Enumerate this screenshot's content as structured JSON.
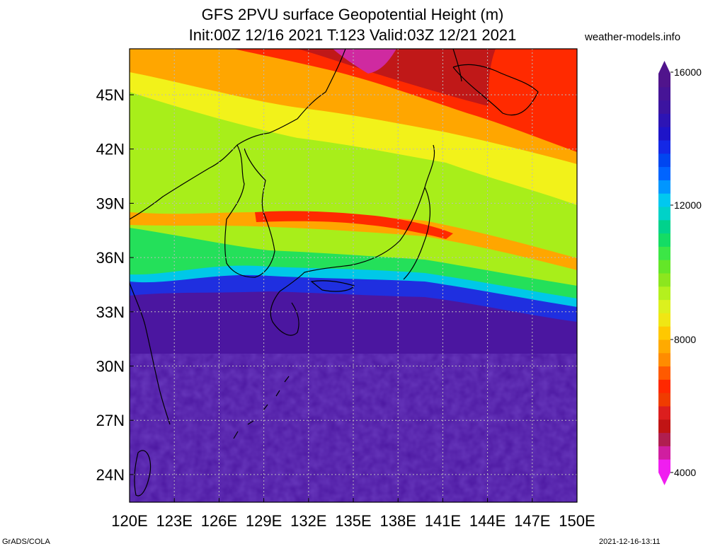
{
  "title": {
    "line1": "GFS 2PVU surface Geopotential Height (m)",
    "line2": "Init:00Z 12/16 2021 T:123 Valid:03Z 12/21 2021"
  },
  "source_site": "weather-models.info",
  "footer": {
    "left": "GrADS/COLA",
    "right": "2021-12-16-13:11"
  },
  "map": {
    "lon_labels": [
      "120E",
      "123E",
      "126E",
      "129E",
      "132E",
      "135E",
      "138E",
      "141E",
      "144E",
      "147E",
      "150E"
    ],
    "lat_labels": [
      "45N",
      "42N",
      "39N",
      "36N",
      "33N",
      "30N",
      "27N",
      "24N"
    ],
    "colors": {
      "deep": "#4b16a0",
      "blue": "#1f2fe0",
      "cyan": "#00c8e8",
      "green": "#24e05a",
      "yellowgreen": "#a8ee1a",
      "yellow": "#f2f21a",
      "orange": "#ffa600",
      "red": "#ff2a00",
      "darkred": "#c01818",
      "magenta": "#cf2aa0"
    }
  },
  "colorbar": {
    "labels": [
      "16000",
      "12000",
      "8000",
      "4000"
    ],
    "colors": [
      "#f01ef0",
      "#d01ea0",
      "#b01e50",
      "#c01414",
      "#dc1e1e",
      "#f03c00",
      "#ff2800",
      "#ff5a00",
      "#ff8c00",
      "#ffaa00",
      "#ffc800",
      "#f0e614",
      "#dcf01e",
      "#b4f01e",
      "#8ce61e",
      "#64e628",
      "#3ce646",
      "#14dc64",
      "#00d28c",
      "#00d2c8",
      "#00c8f0",
      "#0096ff",
      "#0064ff",
      "#0046f0",
      "#1428e6",
      "#1e14c8",
      "#2d14b4",
      "#3c14a0",
      "#461496",
      "#50148c"
    ]
  }
}
